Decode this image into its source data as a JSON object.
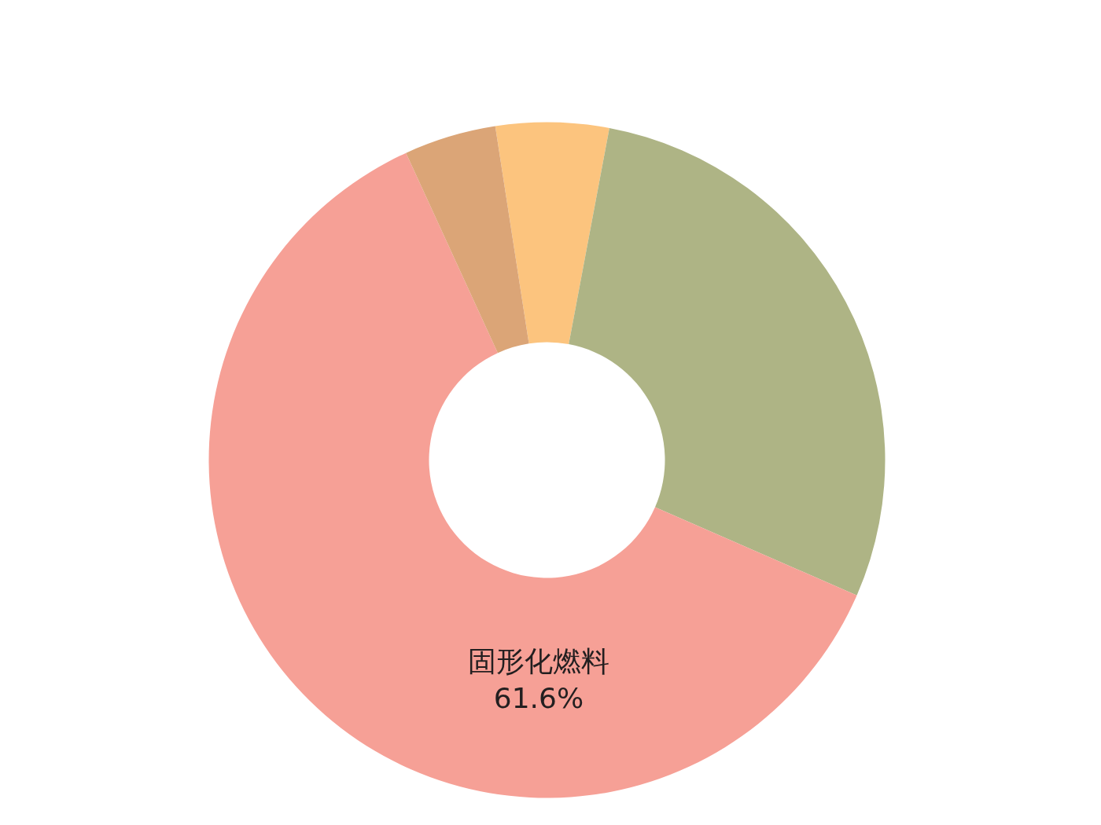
{
  "chart_data": {
    "type": "donut",
    "categories": [
      null,
      null,
      "固形化燃料",
      null
    ],
    "values": [
      5.4,
      28.6,
      61.6,
      4.4
    ],
    "colors": [
      "#fcc47e",
      "#aeb485",
      "#f6a096",
      "#dba577"
    ],
    "value_labels": [
      null,
      null,
      "61.6%",
      null
    ]
  }
}
